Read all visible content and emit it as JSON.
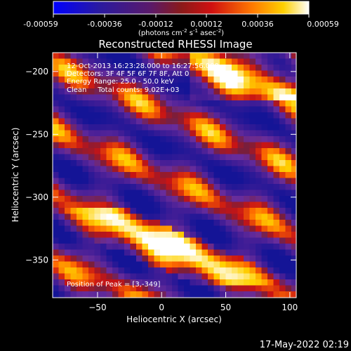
{
  "colorbar": {
    "ticks": [
      "-0.00059",
      "-0.00036",
      "-0.00012",
      "0.00012",
      "0.00036",
      "0.00059"
    ],
    "unit_main": "(photons cm",
    "unit_exp1": "-2",
    "unit_mid": " s",
    "unit_exp2": "-1",
    "unit_mid2": " asec",
    "unit_exp3": "-2",
    "unit_end": ")"
  },
  "annotations": {
    "line1": "12-Oct-2013 16:23:28.000 to 16:27:56.000",
    "line2": "Detectors: 3F 4F 5F 6F 7F 8F, Att 0",
    "line3": "Energy Range: 25.0 - 50.0 keV",
    "line4": "Clean     Total counts: 9.02E+03",
    "peak": "Position of Peak = [3,-349]"
  },
  "footer": {
    "timestamp": "17-May-2022 02:19"
  },
  "chart_data": {
    "type": "heatmap",
    "title": "Reconstructed RHESSI Image",
    "xlabel": "Heliocentric X (arcsec)",
    "ylabel": "Heliocentric Y (arcsec)",
    "xlim": [
      -85,
      105
    ],
    "ylim": [
      -380,
      -185
    ],
    "xticks": [
      -50,
      0,
      50,
      100
    ],
    "yticks": [
      -200,
      -250,
      -300,
      -350
    ],
    "colorbar_range": [
      -0.00059,
      0.00059
    ],
    "peak_position": [
      3,
      -349
    ],
    "colors": {
      "low": "#0000ff",
      "mid": "#6a2a9a",
      "high": "#ffffff"
    }
  }
}
